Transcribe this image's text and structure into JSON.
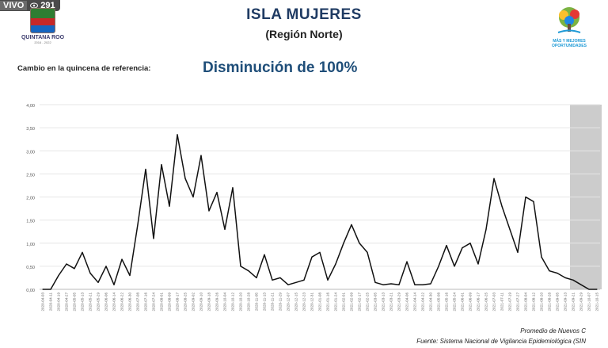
{
  "badge": {
    "live": "VIVO",
    "viewers": "291",
    "eye_icon": "eye-icon"
  },
  "header": {
    "title": "ISLA MUJERES",
    "subtitle": "(Región Norte)",
    "left_logo": {
      "text": "QUINTANA ROO",
      "years": "2016 - 2022"
    },
    "right_logo": {
      "slogan_line1": "MÁS Y MEJORES",
      "slogan_line2": "OPORTUNIDADES"
    }
  },
  "change": {
    "label": "Cambio en la quincena de referencia:",
    "value": "Disminución de 100%"
  },
  "footer": {
    "note1": "Promedio de Nuevos C",
    "note2": "Fuente: Sistema Nacional de Vigilancia Epidemiológica (SIN"
  },
  "colors": {
    "title": "#1f3b63",
    "accent": "#1f4e79",
    "line": "#111111",
    "shade": "#cccccc"
  },
  "chart_data": {
    "type": "line",
    "ylim": [
      0,
      4
    ],
    "ytick_labels": [
      "0,00",
      "0,50",
      "1,00",
      "1,50",
      "2,00",
      "2,50",
      "3,00",
      "3,50",
      "4,00"
    ],
    "ytick_values": [
      0,
      0.5,
      1,
      1.5,
      2,
      2.5,
      3,
      3.5,
      4
    ],
    "grid": true,
    "shaded_last_points": 4,
    "x": [
      "2020-04-03",
      "2020-04-11",
      "2020-04-19",
      "2020-04-27",
      "2020-05-05",
      "2020-05-13",
      "2020-05-21",
      "2020-05-29",
      "2020-06-06",
      "2020-06-14",
      "2020-06-22",
      "2020-06-30",
      "2020-07-08",
      "2020-07-16",
      "2020-07-24",
      "2020-08-01",
      "2020-08-09",
      "2020-08-17",
      "2020-08-25",
      "2020-09-02",
      "2020-09-10",
      "2020-09-18",
      "2020-09-26",
      "2020-10-04",
      "2020-10-12",
      "2020-10-20",
      "2020-10-28",
      "2020-11-05",
      "2020-11-13",
      "2020-11-21",
      "2020-11-29",
      "2020-12-07",
      "2020-12-15",
      "2020-12-23",
      "2020-12-31",
      "2021-01-08",
      "2021-01-16",
      "2021-01-24",
      "2021-02-01",
      "2021-02-09",
      "2021-02-17",
      "2021-02-25",
      "2021-03-05",
      "2021-03-13",
      "2021-03-21",
      "2021-03-29",
      "2021-04-06",
      "2021-04-14",
      "2021-04-22",
      "2021-04-30",
      "2021-05-08",
      "2021-05-16",
      "2021-05-24",
      "2021-06-01",
      "2021-06-09",
      "2021-06-17",
      "2021-06-25",
      "2021-07-03",
      "2021-07-11",
      "2021-07-19",
      "2021-07-27",
      "2021-08-04",
      "2021-08-12",
      "2021-08-20",
      "2021-08-28",
      "2021-09-05",
      "2021-09-13",
      "2021-09-21",
      "2021-09-29",
      "2021-10-07",
      "2021-10-15"
    ],
    "y": [
      0.0,
      0.0,
      0.3,
      0.55,
      0.45,
      0.8,
      0.35,
      0.15,
      0.5,
      0.1,
      0.65,
      0.3,
      1.4,
      2.6,
      1.1,
      2.7,
      1.8,
      3.35,
      2.4,
      2.0,
      2.9,
      1.7,
      2.1,
      1.3,
      2.2,
      0.5,
      0.4,
      0.25,
      0.75,
      0.2,
      0.25,
      0.1,
      0.15,
      0.2,
      0.7,
      0.8,
      0.2,
      0.55,
      1.0,
      1.4,
      1.0,
      0.8,
      0.15,
      0.1,
      0.12,
      0.1,
      0.6,
      0.1,
      0.1,
      0.12,
      0.5,
      0.95,
      0.5,
      0.9,
      1.0,
      0.55,
      1.3,
      2.4,
      1.8,
      1.3,
      0.8,
      2.0,
      1.9,
      0.7,
      0.4,
      0.35,
      0.25,
      0.2,
      0.1,
      0.0,
      0.0
    ]
  }
}
